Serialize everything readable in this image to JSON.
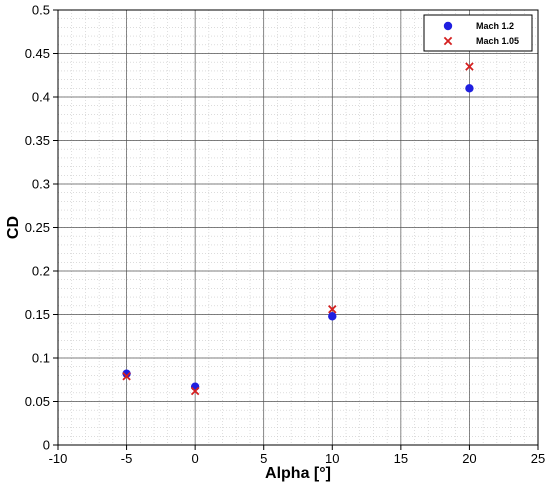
{
  "chart_data": {
    "type": "scatter",
    "title": "",
    "xlabel": "Alpha [°]",
    "ylabel": "CD",
    "xlim": [
      -10,
      25
    ],
    "ylim": [
      0,
      0.5
    ],
    "x_ticks": [
      "-10",
      "-5",
      "0",
      "5",
      "10",
      "15",
      "20",
      "25"
    ],
    "y_ticks": [
      "0",
      "0.05",
      "0.1",
      "0.15",
      "0.2",
      "0.25",
      "0.3",
      "0.35",
      "0.4",
      "0.45",
      "0.5"
    ],
    "grid": true,
    "minor_grid": true,
    "legend_position": "top-right",
    "series": [
      {
        "name": "Mach 1.2",
        "marker": "circle",
        "color": "#1f1fe0",
        "x": [
          -5,
          0,
          10,
          20
        ],
        "y": [
          0.082,
          0.067,
          0.148,
          0.41
        ]
      },
      {
        "name": "Mach 1.05",
        "marker": "x",
        "color": "#d42020",
        "x": [
          -5,
          0,
          10,
          20
        ],
        "y": [
          0.079,
          0.062,
          0.156,
          0.435
        ]
      }
    ]
  }
}
